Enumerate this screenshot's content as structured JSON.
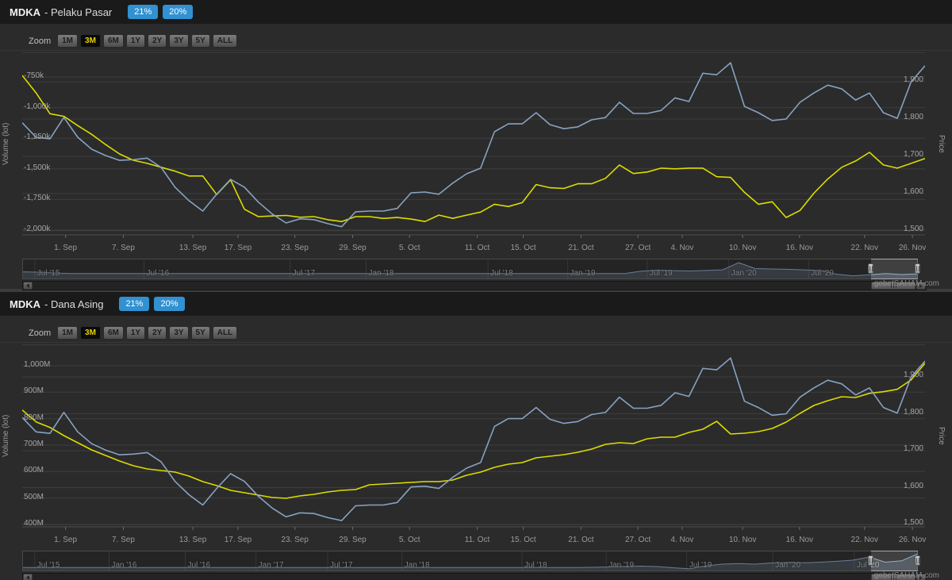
{
  "watermark": "gebetSAHAM.com",
  "panels": [
    {
      "symbol": "MDKA",
      "title": "- Pelaku Pasar",
      "badges": [
        "21%",
        "20%"
      ],
      "zoom_label": "Zoom",
      "zoom_buttons": [
        "1M",
        "3M",
        "6M",
        "1Y",
        "2Y",
        "3Y",
        "5Y",
        "ALL"
      ],
      "zoom_selected": "3M"
    },
    {
      "symbol": "MDKA",
      "title": "- Dana Asing",
      "badges": [
        "21%",
        "20%"
      ],
      "zoom_label": "Zoom",
      "zoom_buttons": [
        "1M",
        "3M",
        "6M",
        "1Y",
        "2Y",
        "3Y",
        "5Y",
        "ALL"
      ],
      "zoom_selected": "3M"
    }
  ],
  "chart_data": [
    {
      "type": "line",
      "title": "MDKA - Pelaku Pasar",
      "x_tick_labels": [
        "1. Sep",
        "7. Sep",
        "13. Sep",
        "17. Sep",
        "23. Sep",
        "29. Sep",
        "5. Oct",
        "11. Oct",
        "15. Oct",
        "21. Oct",
        "27. Oct",
        "4. Nov",
        "10. Nov",
        "16. Nov",
        "22. Nov",
        "26. Nov"
      ],
      "x_tick_pct": [
        4.8,
        11.2,
        18.9,
        23.9,
        30.2,
        36.6,
        42.9,
        50.4,
        55.5,
        61.9,
        68.2,
        73.1,
        79.8,
        86.1,
        93.3,
        98.6
      ],
      "left_axis": {
        "title": "Volume (lot)",
        "tick_labels": [
          "-750k",
          "-1,000k",
          "-1,250k",
          "-1,500k",
          "-1,750k",
          "-2,000k"
        ],
        "tick_values": [
          -750,
          -1000,
          -1250,
          -1500,
          -1750,
          -2000
        ],
        "min": -2039,
        "max": -549
      },
      "right_axis": {
        "title": "Price",
        "tick_labels": [
          "1,900",
          "1,800",
          "1,700",
          "1,600",
          "1,500"
        ],
        "tick_values": [
          1900,
          1800,
          1700,
          1600,
          1500
        ],
        "min": 1489,
        "max": 1979
      },
      "series": [
        {
          "name": "Volume (lot)",
          "axis": "left",
          "color": "#dcdc00",
          "unit": "k lot",
          "values": [
            -737,
            -880,
            -1050,
            -1071,
            -1147,
            -1218,
            -1301,
            -1378,
            -1430,
            -1455,
            -1487,
            -1519,
            -1558,
            -1558,
            -1710,
            -1590,
            -1830,
            -1890,
            -1885,
            -1880,
            -1895,
            -1890,
            -1915,
            -1930,
            -1890,
            -1890,
            -1905,
            -1897,
            -1910,
            -1930,
            -1878,
            -1904,
            -1878,
            -1853,
            -1789,
            -1808,
            -1776,
            -1628,
            -1654,
            -1660,
            -1622,
            -1622,
            -1577,
            -1468,
            -1538,
            -1526,
            -1494,
            -1500,
            -1494,
            -1494,
            -1564,
            -1570,
            -1692,
            -1789,
            -1769,
            -1897,
            -1840,
            -1699,
            -1583,
            -1487,
            -1436,
            -1365,
            -1468,
            -1494,
            -1455,
            -1416
          ]
        },
        {
          "name": "Price",
          "axis": "right",
          "color": "#87a2c2",
          "unit": "IDR",
          "values": [
            1790,
            1751,
            1747,
            1804,
            1751,
            1719,
            1702,
            1689,
            1691,
            1695,
            1670,
            1617,
            1581,
            1553,
            1598,
            1638,
            1617,
            1577,
            1545,
            1521,
            1532,
            1530,
            1519,
            1511,
            1551,
            1553,
            1553,
            1560,
            1602,
            1604,
            1598,
            1628,
            1653,
            1668,
            1766,
            1787,
            1787,
            1817,
            1785,
            1774,
            1779,
            1798,
            1804,
            1845,
            1815,
            1815,
            1823,
            1857,
            1847,
            1923,
            1919,
            1951,
            1834,
            1817,
            1796,
            1800,
            1845,
            1870,
            1891,
            1881,
            1851,
            1870,
            1817,
            1802,
            1900,
            1943
          ]
        }
      ],
      "navigator": {
        "labels": [
          "Jul '15",
          "Jul '16",
          "Jul '17",
          "Jan '18",
          "Jul '18",
          "Jan '19",
          "Jul '19",
          "Jan '20",
          "Jul '20"
        ],
        "label_pct": [
          1.4,
          13.6,
          29.9,
          38.4,
          52.0,
          60.9,
          69.8,
          78.9,
          87.8
        ],
        "area": [
          0.4,
          0.38,
          0.33,
          0.3,
          0.3,
          0.3,
          0.3,
          0.3,
          0.3,
          0.3,
          0.3,
          0.3,
          0.3,
          0.3,
          0.3,
          0.3,
          0.3,
          0.3,
          0.3,
          0.3,
          0.3,
          0.3,
          0.3,
          0.3,
          0.3,
          0.3,
          0.3,
          0.3,
          0.3,
          0.3,
          0.3,
          0.3,
          0.3,
          0.3,
          0.3,
          0.3,
          0.3,
          0.3,
          0.44,
          0.5,
          0.47,
          0.45,
          0.48,
          0.52,
          0.95,
          0.6,
          0.57,
          0.55,
          0.52,
          0.48,
          0.26,
          0.16,
          0.22,
          0.3,
          0.24,
          0.28
        ],
        "selection_pct": [
          94.8,
          100
        ]
      }
    },
    {
      "type": "line",
      "title": "MDKA - Dana Asing",
      "x_tick_labels": [
        "1. Sep",
        "7. Sep",
        "13. Sep",
        "17. Sep",
        "23. Sep",
        "29. Sep",
        "5. Oct",
        "11. Oct",
        "15. Oct",
        "21. Oct",
        "27. Oct",
        "4. Nov",
        "10. Nov",
        "16. Nov",
        "22. Nov",
        "26. Nov"
      ],
      "x_tick_pct": [
        4.8,
        11.2,
        18.9,
        23.9,
        30.2,
        36.6,
        42.9,
        50.4,
        55.5,
        61.9,
        68.2,
        73.1,
        79.8,
        86.1,
        93.3,
        98.6
      ],
      "left_axis": {
        "title": "Volume (lot)",
        "tick_labels": [
          "1,000M",
          "900M",
          "800M",
          "700M",
          "600M",
          "500M",
          "400M"
        ],
        "tick_values": [
          1000,
          900,
          800,
          700,
          600,
          500,
          400
        ],
        "min": 391,
        "max": 1081
      },
      "right_axis": {
        "title": "Price",
        "tick_labels": [
          "1,900",
          "1,800",
          "1,700",
          "1,600",
          "1,500"
        ],
        "tick_values": [
          1900,
          1800,
          1700,
          1600,
          1500
        ],
        "min": 1494,
        "max": 1988
      },
      "series": [
        {
          "name": "Volume (lot)",
          "axis": "left",
          "color": "#dcdc00",
          "unit": "M lot",
          "values": [
            833,
            788,
            767,
            736,
            709,
            682,
            661,
            640,
            622,
            610,
            604,
            598,
            583,
            562,
            547,
            529,
            520,
            511,
            502,
            499,
            508,
            514,
            523,
            529,
            532,
            550,
            553,
            556,
            559,
            562,
            562,
            568,
            586,
            598,
            616,
            628,
            634,
            652,
            658,
            664,
            673,
            685,
            703,
            709,
            706,
            724,
            730,
            730,
            748,
            760,
            790,
            742,
            745,
            751,
            763,
            787,
            820,
            850,
            868,
            883,
            880,
            896,
            902,
            911,
            947,
            1010
          ]
        },
        {
          "name": "Price",
          "axis": "right",
          "color": "#87a2c2",
          "unit": "IDR",
          "values": [
            1790,
            1751,
            1747,
            1804,
            1751,
            1719,
            1702,
            1689,
            1691,
            1695,
            1670,
            1617,
            1581,
            1553,
            1598,
            1638,
            1617,
            1577,
            1545,
            1521,
            1532,
            1530,
            1519,
            1511,
            1551,
            1553,
            1553,
            1560,
            1602,
            1604,
            1598,
            1628,
            1653,
            1668,
            1766,
            1787,
            1787,
            1817,
            1785,
            1774,
            1779,
            1798,
            1804,
            1845,
            1815,
            1815,
            1823,
            1857,
            1847,
            1923,
            1919,
            1951,
            1834,
            1817,
            1796,
            1800,
            1845,
            1870,
            1891,
            1881,
            1851,
            1870,
            1817,
            1802,
            1900,
            1943
          ]
        }
      ],
      "navigator": {
        "labels": [
          "Jul '15",
          "Jan '16",
          "Jul '16",
          "Jan '17",
          "Jul '17",
          "Jan '18",
          "Jul '18",
          "Jan '19",
          "Jul '19",
          "Jan '20",
          "Jul '20"
        ],
        "label_pct": [
          1.4,
          9.7,
          18.2,
          26.1,
          34.1,
          42.4,
          55.8,
          65.2,
          74.2,
          83.8,
          92.9
        ],
        "area": [
          0.18,
          0.18,
          0.18,
          0.18,
          0.18,
          0.18,
          0.18,
          0.18,
          0.18,
          0.18,
          0.18,
          0.18,
          0.18,
          0.18,
          0.18,
          0.18,
          0.18,
          0.18,
          0.18,
          0.18,
          0.18,
          0.18,
          0.18,
          0.18,
          0.18,
          0.18,
          0.18,
          0.18,
          0.18,
          0.18,
          0.18,
          0.18,
          0.18,
          0.18,
          0.18,
          0.19,
          0.21,
          0.24,
          0.26,
          0.24,
          0.16,
          0.1,
          0.28,
          0.38,
          0.42,
          0.38,
          0.45,
          0.48,
          0.46,
          0.5,
          0.55,
          0.62,
          0.8,
          0.5,
          0.58,
          1.0
        ],
        "selection_pct": [
          94.8,
          100
        ]
      }
    }
  ]
}
